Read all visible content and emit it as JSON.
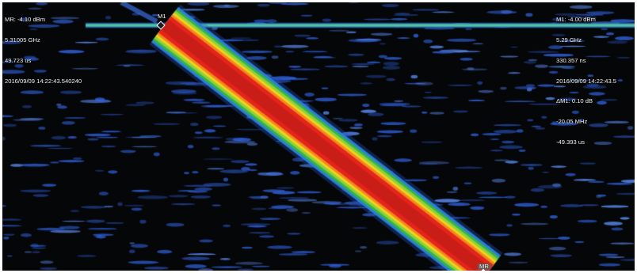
{
  "reference_marker": {
    "label": "MR",
    "lines": [
      "MR: -4.10 dBm",
      "5.31005 GHz",
      "49.723 us",
      "2016/09/09 14:22:43.540240"
    ]
  },
  "marker_1": {
    "label": "M1",
    "lines": [
      "M1: -4.00 dBm",
      "5.29 GHz",
      "330.357 ns",
      "2016/09/09 14:22:43.5",
      "ΔM1: 0.10 dB",
      "-20.05 MHz",
      "-49.393 us"
    ]
  },
  "colors": {
    "background": "#050608",
    "noise": "#2f5fd6",
    "signal_core": "#e5241b",
    "signal_mid": "#f4d21c",
    "signal_edge": "#36b34a"
  }
}
